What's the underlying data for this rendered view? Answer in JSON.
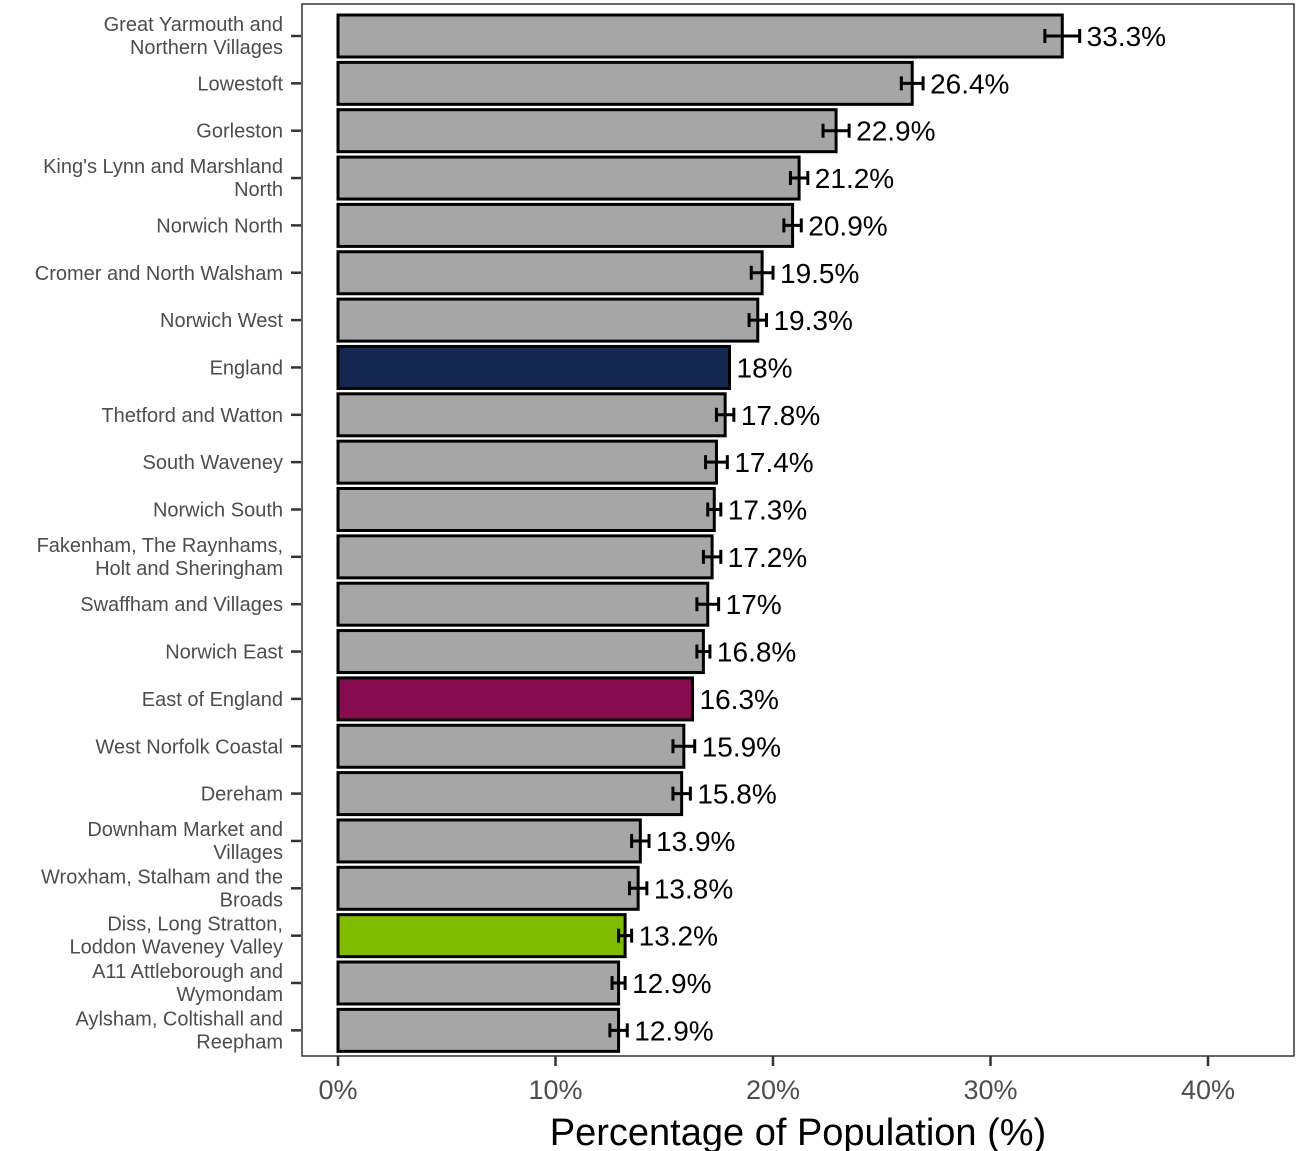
{
  "chart_data": {
    "type": "bar",
    "orientation": "horizontal",
    "xlabel": "Percentage of Population (%)",
    "xlim": [
      0,
      44
    ],
    "x_ticks": [
      0,
      10,
      20,
      30,
      40
    ],
    "x_tick_labels": [
      "0%",
      "10%",
      "20%",
      "30%",
      "40%"
    ],
    "grid": false,
    "legend": "none",
    "colors": {
      "default": "#a6a6a6",
      "England": "#14274e",
      "East of England": "#870c4f",
      "Diss, Long Stratton, Loddon Waveney Valley": "#7fbc00"
    },
    "bars": [
      {
        "category": "Great Yarmouth and Northern Villages",
        "lines": [
          "Great Yarmouth and",
          "Northern Villages"
        ],
        "value": 33.3,
        "label": "33.3%",
        "ci": [
          32.5,
          34.1
        ]
      },
      {
        "category": "Lowestoft",
        "lines": [
          "Lowestoft"
        ],
        "value": 26.4,
        "label": "26.4%",
        "ci": [
          25.9,
          26.9
        ]
      },
      {
        "category": "Gorleston",
        "lines": [
          "Gorleston"
        ],
        "value": 22.9,
        "label": "22.9%",
        "ci": [
          22.3,
          23.5
        ]
      },
      {
        "category": "King's Lynn and Marshland North",
        "lines": [
          "King's Lynn and Marshland",
          "North"
        ],
        "value": 21.2,
        "label": "21.2%",
        "ci": [
          20.8,
          21.6
        ]
      },
      {
        "category": "Norwich North",
        "lines": [
          "Norwich North"
        ],
        "value": 20.9,
        "label": "20.9%",
        "ci": [
          20.5,
          21.3
        ]
      },
      {
        "category": "Cromer and North Walsham",
        "lines": [
          "Cromer and North Walsham"
        ],
        "value": 19.5,
        "label": "19.5%",
        "ci": [
          19.0,
          20.0
        ]
      },
      {
        "category": "Norwich West",
        "lines": [
          "Norwich West"
        ],
        "value": 19.3,
        "label": "19.3%",
        "ci": [
          18.9,
          19.7
        ]
      },
      {
        "category": "England",
        "lines": [
          "England"
        ],
        "value": 18.0,
        "label": "18%",
        "ci": [
          18.0,
          18.0
        ]
      },
      {
        "category": "Thetford and Watton",
        "lines": [
          "Thetford and Watton"
        ],
        "value": 17.8,
        "label": "17.8%",
        "ci": [
          17.4,
          18.2
        ]
      },
      {
        "category": "South Waveney",
        "lines": [
          "South Waveney"
        ],
        "value": 17.4,
        "label": "17.4%",
        "ci": [
          16.9,
          17.9
        ]
      },
      {
        "category": "Norwich South",
        "lines": [
          "Norwich South"
        ],
        "value": 17.3,
        "label": "17.3%",
        "ci": [
          17.0,
          17.6
        ]
      },
      {
        "category": "Fakenham, The Raynhams, Holt and Sheringham",
        "lines": [
          "Fakenham, The Raynhams,",
          "Holt and Sheringham"
        ],
        "value": 17.2,
        "label": "17.2%",
        "ci": [
          16.8,
          17.6
        ]
      },
      {
        "category": "Swaffham and Villages",
        "lines": [
          "Swaffham and Villages"
        ],
        "value": 17.0,
        "label": "17%",
        "ci": [
          16.5,
          17.5
        ]
      },
      {
        "category": "Norwich East",
        "lines": [
          "Norwich East"
        ],
        "value": 16.8,
        "label": "16.8%",
        "ci": [
          16.5,
          17.1
        ]
      },
      {
        "category": "East of England",
        "lines": [
          "East of England"
        ],
        "value": 16.3,
        "label": "16.3%",
        "ci": [
          16.3,
          16.3
        ]
      },
      {
        "category": "West Norfolk Coastal",
        "lines": [
          "West Norfolk Coastal"
        ],
        "value": 15.9,
        "label": "15.9%",
        "ci": [
          15.4,
          16.4
        ]
      },
      {
        "category": "Dereham",
        "lines": [
          "Dereham"
        ],
        "value": 15.8,
        "label": "15.8%",
        "ci": [
          15.4,
          16.2
        ]
      },
      {
        "category": "Downham Market and Villages",
        "lines": [
          "Downham Market and",
          "Villages"
        ],
        "value": 13.9,
        "label": "13.9%",
        "ci": [
          13.5,
          14.3
        ]
      },
      {
        "category": "Wroxham, Stalham and the Broads",
        "lines": [
          "Wroxham, Stalham and the",
          "Broads"
        ],
        "value": 13.8,
        "label": "13.8%",
        "ci": [
          13.4,
          14.2
        ]
      },
      {
        "category": "Diss, Long Stratton, Loddon Waveney Valley",
        "lines": [
          "Diss, Long Stratton,",
          "Loddon Waveney Valley"
        ],
        "value": 13.2,
        "label": "13.2%",
        "ci": [
          12.9,
          13.5
        ]
      },
      {
        "category": "A11 Attleborough and Wymondam",
        "lines": [
          "A11 Attleborough and",
          "Wymondam"
        ],
        "value": 12.9,
        "label": "12.9%",
        "ci": [
          12.6,
          13.2
        ]
      },
      {
        "category": "Aylsham, Coltishall and Reepham",
        "lines": [
          "Aylsham, Coltishall and",
          "Reepham"
        ],
        "value": 12.9,
        "label": "12.9%",
        "ci": [
          12.5,
          13.3
        ]
      }
    ]
  }
}
